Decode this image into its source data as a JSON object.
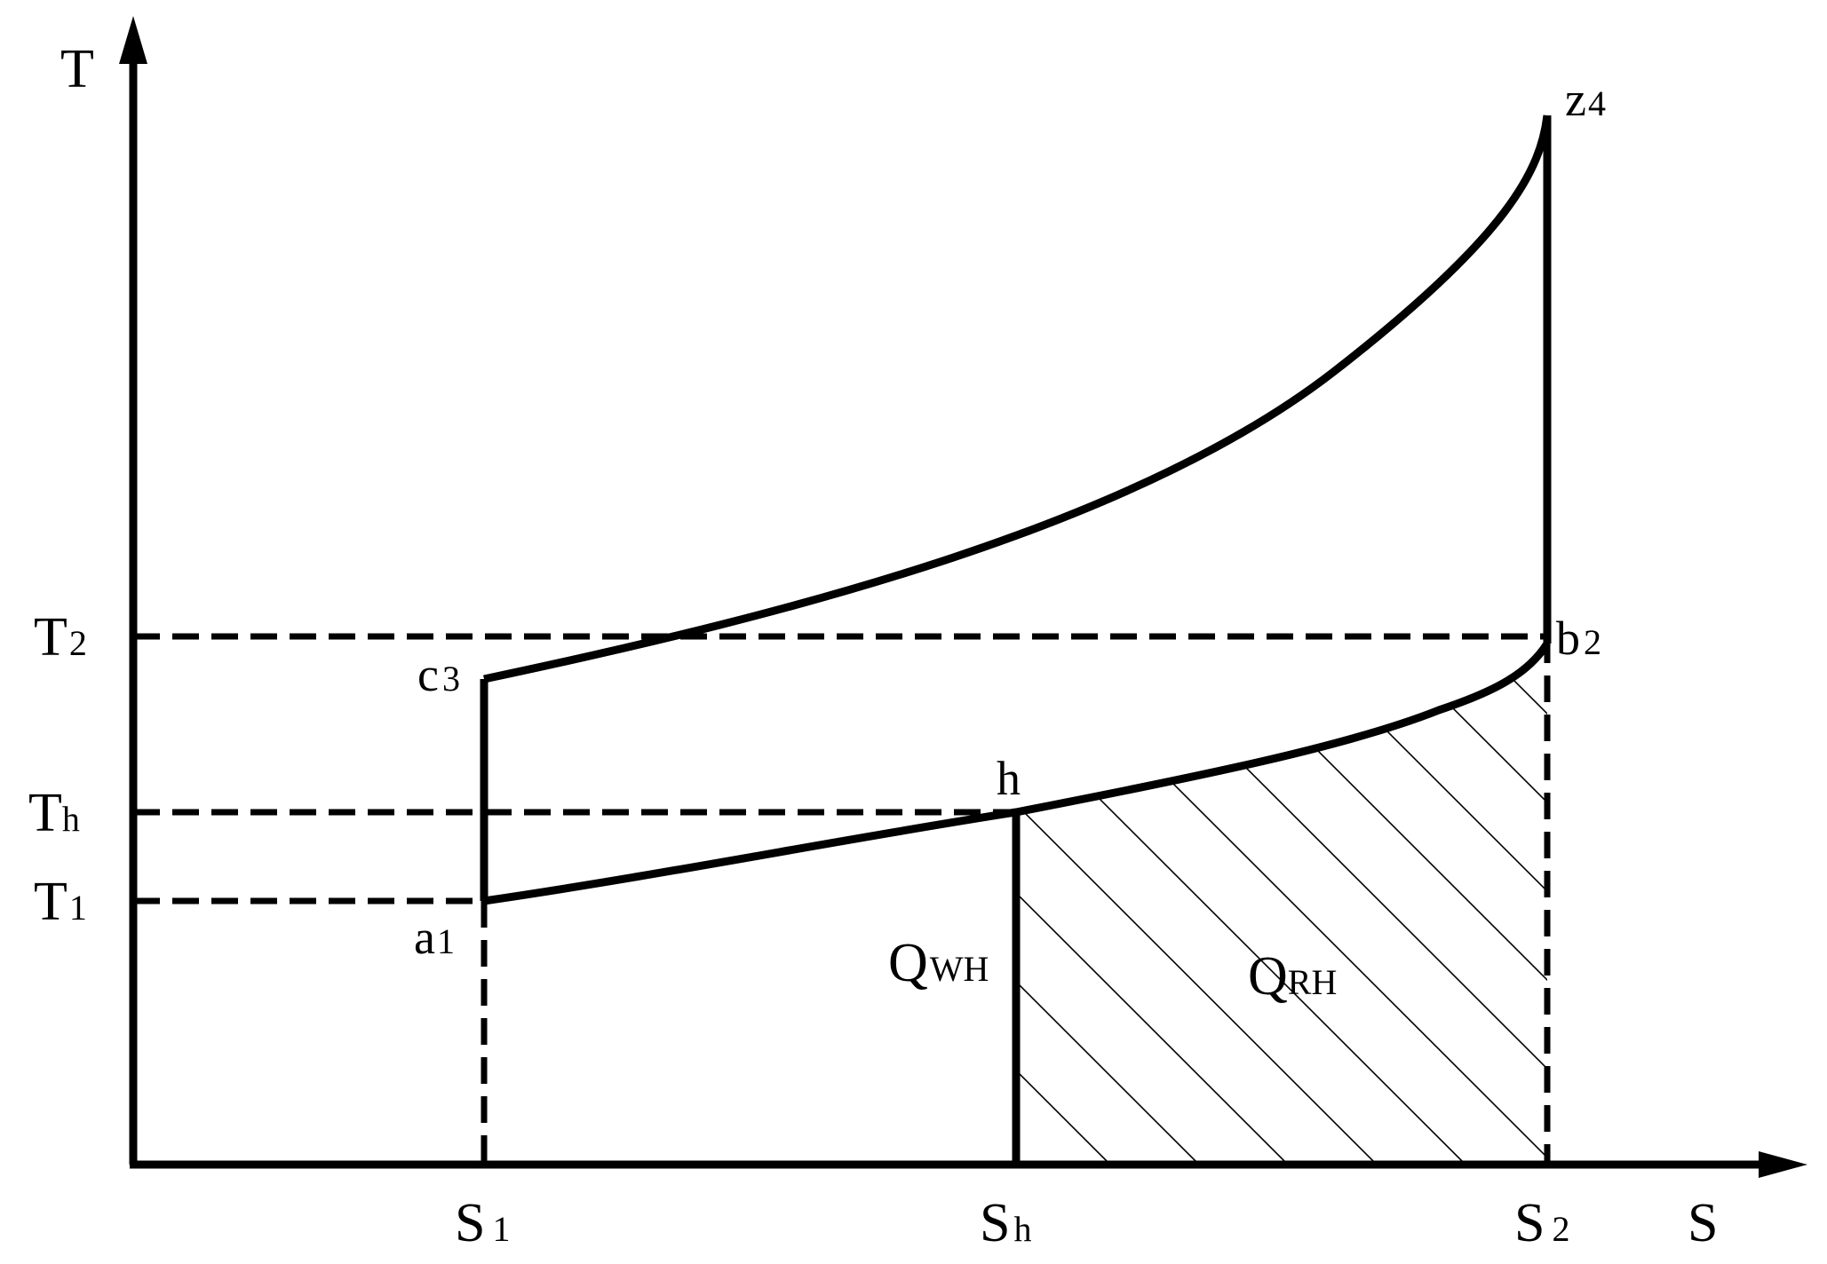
{
  "axes": {
    "x_label": "S",
    "y_label": "T"
  },
  "ticks": {
    "x": [
      {
        "main": "S",
        "sub": "1"
      },
      {
        "main": "S",
        "sub": "h"
      },
      {
        "main": "S",
        "sub": "2"
      }
    ],
    "y": [
      {
        "main": "T",
        "sub": "2"
      },
      {
        "main": "T",
        "sub": "h"
      },
      {
        "main": "T",
        "sub": "1"
      }
    ]
  },
  "points": {
    "z": {
      "main": "z",
      "sub": "4"
    },
    "b": {
      "main": "b",
      "sub": "2"
    },
    "c": {
      "main": "c",
      "sub": "3"
    },
    "h": {
      "main": "h",
      "sub": ""
    },
    "a": {
      "main": "a",
      "sub": "1"
    }
  },
  "regions": {
    "q_wh": {
      "main": "Q",
      "sub": "WH"
    },
    "q_rh": {
      "main": "Q",
      "sub": "RH"
    }
  }
}
